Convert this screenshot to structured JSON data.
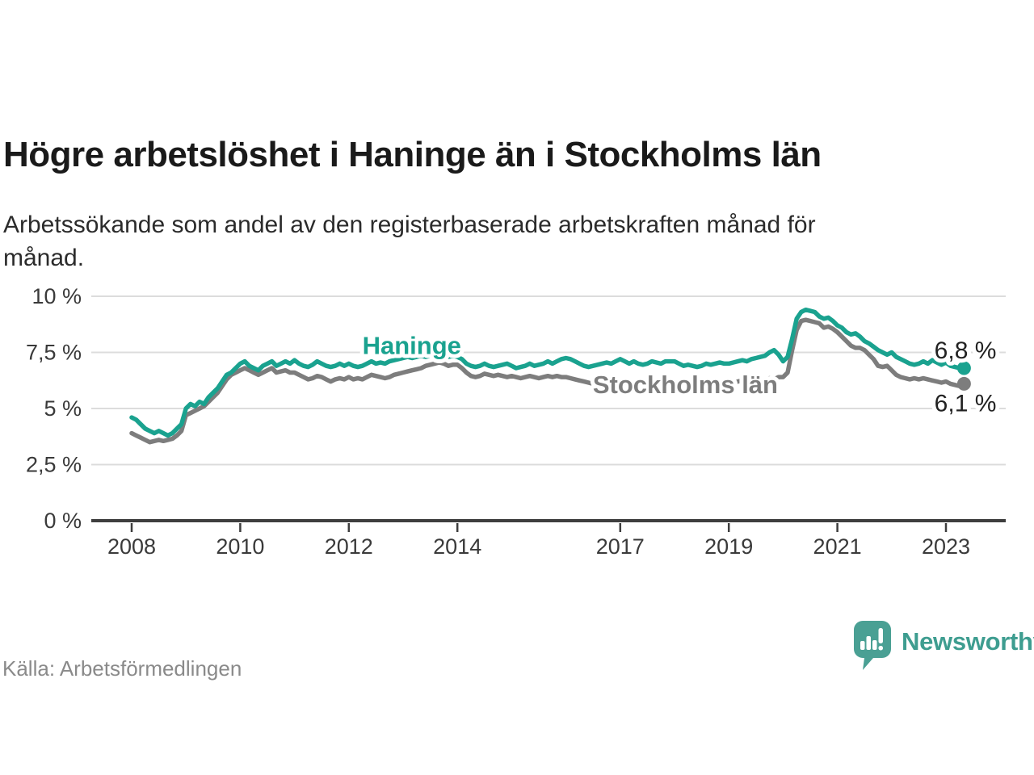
{
  "header": {
    "title": "Högre arbetslöshet i Haninge än i Stockholms län",
    "subtitle": "Arbetssökande som andel av den registerbaserade arbetskraften månad för månad."
  },
  "footer": {
    "source": "Källa: Arbetsförmedlingen",
    "brand": "Newsworthy"
  },
  "colors": {
    "haninge": "#1aa28f",
    "stockholm": "#7d7d7d",
    "grid": "#dcdcdc",
    "axis": "#3e3e3e",
    "tick_text": "#3a3a3a",
    "value_text": "#222222",
    "logo": "#4aa094"
  },
  "chart_data": {
    "type": "line",
    "title": "Högre arbetslöshet i Haninge än i Stockholms län",
    "xlabel": "",
    "ylabel": "",
    "ylim": [
      0,
      10
    ],
    "grid": true,
    "legend_position": "inline-labels",
    "x_start": 2008.0,
    "frequency": "monthly",
    "period": "2008-01 to 2023-05",
    "y_tick_values": [
      0,
      2.5,
      5,
      7.5,
      10
    ],
    "y_tick_labels": [
      "0 %",
      "2,5 %",
      "5 %",
      "7,5 %",
      "10 %"
    ],
    "x_tick_values": [
      2008,
      2010,
      2012,
      2014,
      2017,
      2019,
      2021,
      2023
    ],
    "x_tick_labels": [
      "2008",
      "2010",
      "2012",
      "2014",
      "2017",
      "2019",
      "2021",
      "2023"
    ],
    "series": [
      {
        "name": "Stockholms län",
        "color": "#7d7d7d",
        "end_value_label": "6,1 %",
        "label_pos": {
          "x": 2018.2,
          "y": 6.08
        },
        "values": [
          3.9,
          3.8,
          3.7,
          3.6,
          3.5,
          3.55,
          3.6,
          3.55,
          3.6,
          3.65,
          3.8,
          4.0,
          4.7,
          4.8,
          4.9,
          5.0,
          5.1,
          5.3,
          5.5,
          5.7,
          6.0,
          6.3,
          6.5,
          6.6,
          6.7,
          6.8,
          6.7,
          6.6,
          6.5,
          6.6,
          6.7,
          6.8,
          6.6,
          6.65,
          6.7,
          6.6,
          6.6,
          6.5,
          6.4,
          6.3,
          6.35,
          6.45,
          6.4,
          6.3,
          6.2,
          6.3,
          6.35,
          6.3,
          6.4,
          6.3,
          6.35,
          6.3,
          6.4,
          6.5,
          6.45,
          6.4,
          6.35,
          6.4,
          6.5,
          6.55,
          6.6,
          6.65,
          6.7,
          6.75,
          6.8,
          6.9,
          6.95,
          7.0,
          7.05,
          7.0,
          6.9,
          6.95,
          6.95,
          6.8,
          6.6,
          6.45,
          6.4,
          6.45,
          6.55,
          6.5,
          6.45,
          6.5,
          6.45,
          6.4,
          6.45,
          6.4,
          6.35,
          6.4,
          6.45,
          6.4,
          6.35,
          6.4,
          6.45,
          6.4,
          6.45,
          6.4,
          6.4,
          6.35,
          6.3,
          6.25,
          6.2,
          6.15,
          6.1,
          6.15,
          6.1,
          6.05,
          6.1,
          6.05,
          6.1,
          6.05,
          6.0,
          6.05,
          6.1,
          6.05,
          6.0,
          6.05,
          6.1,
          6.05,
          6.1,
          6.05,
          6.1,
          6.05,
          6.0,
          5.95,
          6.0,
          6.05,
          6.0,
          6.05,
          6.1,
          6.05,
          6.1,
          6.15,
          6.1,
          6.15,
          6.2,
          6.25,
          6.2,
          6.25,
          6.3,
          6.35,
          6.3,
          6.35,
          6.3,
          6.4,
          6.4,
          6.6,
          7.6,
          8.5,
          8.9,
          8.95,
          8.9,
          8.85,
          8.8,
          8.6,
          8.65,
          8.55,
          8.4,
          8.2,
          8.0,
          7.8,
          7.7,
          7.7,
          7.6,
          7.4,
          7.2,
          6.9,
          6.85,
          6.9,
          6.7,
          6.5,
          6.4,
          6.35,
          6.3,
          6.35,
          6.3,
          6.35,
          6.3,
          6.25,
          6.2,
          6.15,
          6.2,
          6.1,
          6.05,
          6.0,
          6.1
        ]
      },
      {
        "name": "Haninge",
        "color": "#1aa28f",
        "end_value_label": "6,8 %",
        "label_pos": {
          "x": 2013.16,
          "y": 7.82
        },
        "values": [
          4.6,
          4.5,
          4.3,
          4.1,
          4.0,
          3.9,
          4.0,
          3.9,
          3.8,
          3.9,
          4.1,
          4.3,
          5.0,
          5.2,
          5.1,
          5.3,
          5.2,
          5.5,
          5.7,
          5.9,
          6.2,
          6.5,
          6.6,
          6.8,
          7.0,
          7.1,
          6.9,
          6.8,
          6.7,
          6.9,
          7.0,
          7.1,
          6.9,
          7.0,
          7.1,
          7.0,
          7.15,
          7.0,
          6.9,
          6.85,
          6.95,
          7.1,
          7.0,
          6.9,
          6.85,
          6.9,
          7.0,
          6.9,
          7.0,
          6.9,
          6.85,
          6.9,
          7.0,
          7.1,
          7.0,
          7.05,
          7.0,
          7.1,
          7.15,
          7.2,
          7.25,
          7.3,
          7.25,
          7.3,
          7.35,
          7.3,
          7.35,
          7.4,
          7.3,
          7.35,
          7.3,
          7.35,
          7.3,
          7.2,
          7.0,
          6.9,
          6.85,
          6.9,
          7.0,
          6.9,
          6.85,
          6.9,
          6.95,
          7.0,
          6.9,
          6.8,
          6.85,
          6.9,
          7.0,
          6.9,
          6.95,
          7.0,
          7.1,
          7.0,
          7.1,
          7.2,
          7.25,
          7.2,
          7.1,
          7.0,
          6.9,
          6.85,
          6.9,
          6.95,
          7.0,
          7.05,
          7.0,
          7.1,
          7.2,
          7.1,
          7.0,
          7.1,
          7.0,
          6.95,
          7.0,
          7.1,
          7.05,
          7.0,
          7.1,
          7.1,
          7.1,
          7.0,
          6.9,
          6.95,
          6.9,
          6.85,
          6.9,
          7.0,
          6.95,
          7.0,
          7.05,
          7.0,
          7.0,
          7.05,
          7.1,
          7.15,
          7.1,
          7.2,
          7.25,
          7.3,
          7.35,
          7.5,
          7.6,
          7.4,
          7.1,
          7.3,
          8.1,
          9.0,
          9.3,
          9.4,
          9.35,
          9.3,
          9.1,
          9.0,
          9.05,
          8.9,
          8.7,
          8.6,
          8.4,
          8.3,
          8.35,
          8.2,
          8.0,
          7.9,
          7.75,
          7.6,
          7.5,
          7.4,
          7.5,
          7.3,
          7.2,
          7.1,
          7.0,
          6.95,
          7.0,
          7.1,
          7.0,
          7.15,
          7.05,
          6.95,
          7.05,
          6.9,
          6.85,
          6.8,
          6.8
        ]
      }
    ]
  }
}
